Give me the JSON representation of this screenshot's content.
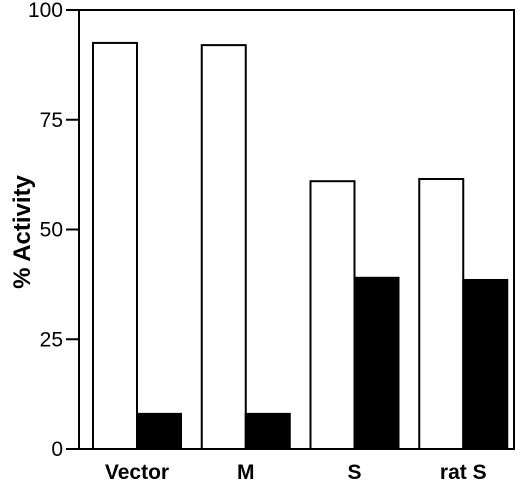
{
  "chart_data": {
    "type": "bar",
    "title": "",
    "xlabel": "",
    "ylabel": "% Activity",
    "ylim": [
      0,
      100
    ],
    "yticks": [
      "0",
      "25",
      "50",
      "75",
      "100"
    ],
    "grid": false,
    "legend": "none",
    "categories": [
      "Vector",
      "M",
      "S",
      "rat S"
    ],
    "series": [
      {
        "values": [
          92.5,
          92,
          61,
          61.5
        ],
        "color": "#ffffff"
      },
      {
        "values": [
          8,
          8,
          39,
          38.5
        ],
        "color": "#000000"
      }
    ]
  }
}
